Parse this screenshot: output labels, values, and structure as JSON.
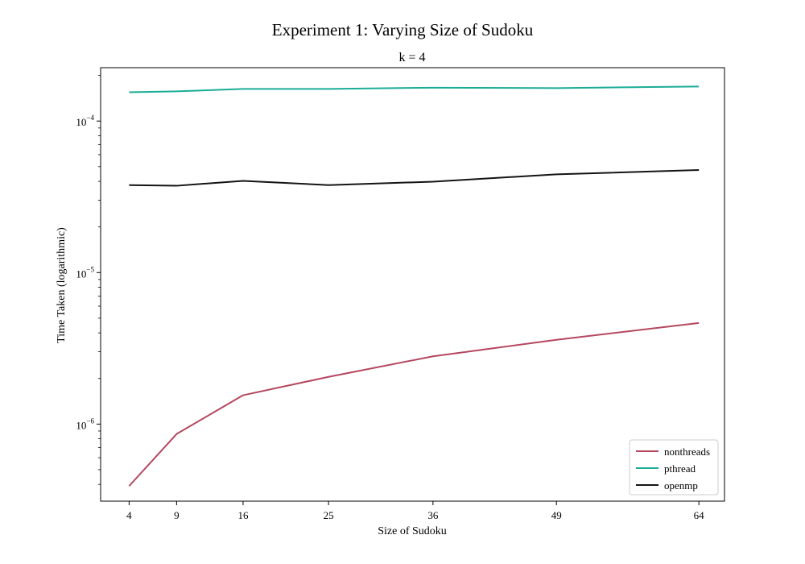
{
  "chart_data": {
    "type": "line",
    "title": "Experiment 1: Varying Size of Sudoku",
    "subtitle": "k = 4",
    "xlabel": "Size of Sudoku",
    "ylabel": "Time Taken (logarithmic)",
    "yscale": "log",
    "ylim": [
      3.1e-07,
      0.000225
    ],
    "xlim": [
      1.0,
      66.7
    ],
    "x": [
      4,
      9,
      16,
      25,
      36,
      49,
      64
    ],
    "x_tick_labels": [
      "4",
      "9",
      "16",
      "25",
      "36",
      "49",
      "64"
    ],
    "y_ticks": [
      {
        "value": 1e-06,
        "base": "10",
        "exp": "−6"
      },
      {
        "value": 1e-05,
        "base": "10",
        "exp": "−5"
      },
      {
        "value": 0.0001,
        "base": "10",
        "exp": "−4"
      }
    ],
    "legend_position": "lower-right",
    "series": [
      {
        "name": "nonthreads",
        "color": "#b5475f",
        "values": [
          3.9e-07,
          8.6e-07,
          1.55e-06,
          2.05e-06,
          2.8e-06,
          3.6e-06,
          4.65e-06
        ]
      },
      {
        "name": "pthread",
        "color": "#1aac96",
        "values": [
          0.000155,
          0.000157,
          0.000163,
          0.000163,
          0.000166,
          0.000165,
          0.000169
        ]
      },
      {
        "name": "openmp",
        "color": "#141414",
        "values": [
          3.78e-05,
          3.74e-05,
          4.03e-05,
          3.78e-05,
          3.98e-05,
          4.45e-05,
          4.75e-05
        ]
      }
    ]
  }
}
